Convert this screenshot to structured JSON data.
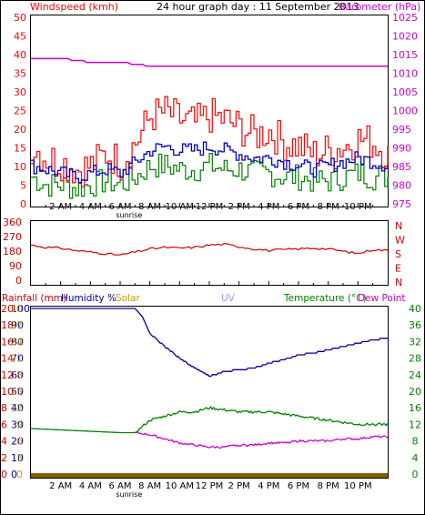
{
  "header": {
    "windspeed_label": "Windspeed (kmh)",
    "title": "24 hour graph day : 11 September 2013",
    "barometer_label": "Barometer (hPa)"
  },
  "time_labels": [
    "2 AM",
    "4 AM",
    "6 AM",
    "8 AM",
    "10 AM",
    "12 PM",
    "2 PM",
    "4 PM",
    "6 PM",
    "8 PM",
    "10 PM"
  ],
  "sunrise_label": "sunrise",
  "dir_compass": [
    "N",
    "W",
    "S",
    "E",
    "N"
  ],
  "bottom_header": {
    "rainfall": "Rainfall (mm)",
    "humidity": "Humidity %",
    "solar": "Solar",
    "uv": "UV",
    "temperature": "Temperature (°C)",
    "dew_point": "Dew Point"
  },
  "colors": {
    "gust": "#ff0000",
    "avg_wind": "#0000cc",
    "wind_low": "#008000",
    "barometer": "#cc00cc",
    "direction": "#cc0000",
    "humidity": "#000099",
    "temperature": "#008000",
    "dew_point": "#cc00cc",
    "rain": "#806000",
    "uv": "#9999ff",
    "frame": "#000000"
  },
  "chart_data": [
    {
      "type": "line",
      "title": "24 hour graph day : 11 September 2013",
      "x": [
        "2 AM",
        "4 AM",
        "6 AM",
        "8 AM",
        "10 AM",
        "12 PM",
        "2 PM",
        "4 PM",
        "6 PM",
        "8 PM",
        "10 PM"
      ],
      "y_left": {
        "label": "Windspeed (kmh)",
        "ticks": [
          "0",
          "5",
          "10",
          "15",
          "20",
          "25",
          "30",
          "35",
          "40",
          "45",
          "50"
        ],
        "ylim": [
          0,
          50
        ]
      },
      "y_right": {
        "label": "Barometer (hPa)",
        "ticks": [
          "975",
          "980",
          "985",
          "990",
          "995",
          "1000",
          "1005",
          "1010",
          "1015",
          "1020",
          "1025"
        ],
        "ylim": [
          975,
          1025
        ]
      },
      "series": [
        {
          "hours": [
            0,
            1,
            2,
            3,
            4,
            5,
            6,
            7,
            8,
            9,
            10,
            11,
            12,
            13,
            14,
            15,
            16,
            17,
            18,
            19,
            20,
            21,
            22,
            23,
            24
          ],
          "gust": [
            15,
            12,
            11,
            9,
            10,
            13,
            11,
            16,
            23,
            24,
            22,
            21,
            23,
            22,
            20,
            18,
            19,
            16,
            15,
            13,
            14,
            15,
            17,
            16,
            13
          ],
          "avg": [
            10,
            9,
            8,
            7,
            8,
            9,
            8,
            11,
            14,
            15,
            14,
            14,
            15,
            14,
            13,
            12,
            12,
            11,
            10,
            9,
            10,
            11,
            12,
            11,
            10
          ],
          "low": [
            7,
            5,
            5,
            4,
            5,
            6,
            5,
            7,
            10,
            10,
            9,
            9,
            10,
            9,
            9,
            8,
            8,
            7,
            7,
            6,
            6,
            7,
            8,
            7,
            7
          ]
        },
        {
          "hours": [
            0,
            1,
            2,
            3,
            4,
            5,
            6,
            7,
            8,
            9,
            10,
            11,
            12,
            13,
            14,
            15,
            16,
            17,
            18,
            19,
            20,
            21,
            22,
            23,
            24
          ],
          "barometer": [
            1013,
            1013,
            1013,
            1012.5,
            1012,
            1012,
            1012,
            1011.5,
            1011,
            1011,
            1011,
            1011,
            1011,
            1011,
            1011,
            1011,
            1011,
            1011,
            1011,
            1011,
            1011,
            1011,
            1011,
            1011,
            1011
          ]
        }
      ],
      "grid": false
    },
    {
      "type": "line",
      "y_left": {
        "label": "",
        "ticks": [
          "360",
          "270",
          "180",
          "90",
          "0"
        ],
        "ylim": [
          0,
          360
        ]
      },
      "y_right": {
        "label": "",
        "ticks": [
          "N",
          "W",
          "S",
          "E",
          "N"
        ]
      },
      "series": [
        {
          "hours": [
            0,
            1,
            2,
            3,
            4,
            5,
            6,
            7,
            8,
            9,
            10,
            11,
            12,
            13,
            14,
            15,
            16,
            17,
            18,
            19,
            20,
            21,
            22,
            23,
            24
          ],
          "direction": [
            225,
            210,
            205,
            190,
            180,
            170,
            160,
            180,
            200,
            210,
            205,
            210,
            225,
            230,
            215,
            200,
            190,
            195,
            200,
            205,
            200,
            185,
            170,
            195,
            190
          ]
        }
      ],
      "grid": false
    },
    {
      "type": "line",
      "y_left_labels": {
        "rainfall": [
          "0",
          "2",
          "4",
          "6",
          "8",
          "10",
          "12",
          "14",
          "16",
          "18",
          "20"
        ],
        "humidity": [
          "0",
          "10",
          "20",
          "30",
          "40",
          "50",
          "60",
          "70",
          "80",
          "90",
          "100"
        ],
        "solar": [
          "0",
          "3",
          "6",
          "9",
          "12",
          "15",
          "18",
          "21",
          "24",
          "27",
          "30"
        ]
      },
      "y_right": {
        "ticks": [
          "0",
          "4",
          "8",
          "12",
          "16",
          "20",
          "24",
          "28",
          "32",
          "36",
          "40"
        ],
        "ylim": [
          0,
          40
        ]
      },
      "series": [
        {
          "name": "Humidity %",
          "hours": [
            0,
            7,
            7.5,
            8,
            9,
            10,
            11,
            12,
            13,
            14,
            15,
            16,
            17,
            18,
            19,
            20,
            21,
            22,
            23,
            24
          ],
          "values": [
            100,
            100,
            95,
            85,
            77,
            70,
            64,
            59,
            62,
            63,
            64,
            67,
            69,
            72,
            73,
            75,
            77,
            79,
            81,
            82
          ]
        },
        {
          "name": "Temperature (°C)",
          "hours": [
            0,
            3,
            6,
            7,
            8,
            9,
            10,
            11,
            12,
            13,
            14,
            15,
            16,
            17,
            18,
            19,
            20,
            21,
            22,
            23,
            24
          ],
          "values": [
            11,
            10.5,
            10,
            10,
            13,
            14,
            15,
            15,
            16,
            15.5,
            15,
            15,
            15,
            14.5,
            14,
            13.5,
            13,
            12.5,
            12,
            12,
            12
          ]
        },
        {
          "name": "Dew Point",
          "hours": [
            7,
            8,
            9,
            10,
            11,
            12,
            13,
            14,
            15,
            16,
            17,
            18,
            19,
            20,
            21,
            22,
            23,
            24
          ],
          "values": [
            10,
            9.5,
            8.5,
            7.5,
            7,
            6.5,
            6.5,
            7,
            7,
            7.5,
            7.5,
            8,
            8,
            8,
            8.5,
            8.5,
            9,
            9
          ]
        },
        {
          "name": "Rainfall (mm)",
          "hours": [
            0,
            24
          ],
          "values": [
            0,
            0
          ]
        }
      ],
      "grid": false
    }
  ]
}
